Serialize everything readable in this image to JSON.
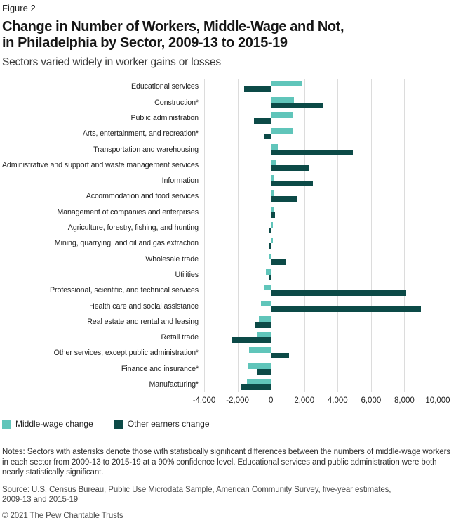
{
  "figure_label": "Figure 2",
  "title_line1": "Change in Number of Workers, Middle-Wage and Not,",
  "title_line2": "in Philadelphia by Sector, 2009-13 to 2015-19",
  "subtitle": "Sectors varied widely in worker gains or losses",
  "colors": {
    "middle_wage": "#60c5ba",
    "other_earners": "#0c4a47",
    "gridline": "#dcdcdc",
    "zero_line": "#9f9f9f"
  },
  "chart_data": {
    "type": "bar",
    "orientation": "horizontal",
    "categories": [
      "Educational services",
      "Construction*",
      "Public administration",
      "Arts, entertainment, and recreation*",
      "Transportation and warehousing",
      "Administrative and support and waste management services",
      "Information",
      "Accommodation and food services",
      "Management of companies and enterprises",
      "Agriculture, forestry, fishing, and hunting",
      "Mining, quarrying, and oil and gas extraction",
      "Wholesale trade",
      "Utilities",
      "Professional, scientific, and technical services",
      "Health care and social assistance",
      "Real estate and rental and leasing",
      "Retail trade",
      "Other services, except public administration*",
      "Finance and insurance*",
      "Manufacturing*"
    ],
    "series": [
      {
        "name": "Middle-wage change",
        "color": "#60c5ba",
        "values": [
          1900,
          1400,
          1300,
          1300,
          400,
          350,
          200,
          200,
          150,
          100,
          100,
          -100,
          -300,
          -400,
          -600,
          -700,
          -800,
          -1300,
          -1400,
          -1450
        ]
      },
      {
        "name": "Other earners change",
        "color": "#0c4a47",
        "values": [
          -1600,
          3100,
          -1000,
          -400,
          4900,
          2300,
          2500,
          1600,
          250,
          -150,
          -100,
          900,
          -100,
          8100,
          9000,
          -950,
          -2300,
          1100,
          -800,
          -1800
        ]
      }
    ],
    "xlim": [
      -4000,
      10000
    ],
    "x_ticks": [
      -4000,
      -2000,
      0,
      2000,
      4000,
      6000,
      8000,
      10000
    ],
    "x_tick_labels": [
      "-4,000",
      "-2,000",
      "0",
      "2,000",
      "4,000",
      "6,000",
      "8,000",
      "10,000"
    ],
    "grid": true,
    "legend_position": "bottom-left"
  },
  "legend": [
    {
      "label": "Middle-wage change",
      "color_key": "middle_wage"
    },
    {
      "label": "Other earners change",
      "color_key": "other_earners"
    }
  ],
  "notes": "Notes: Sectors with asterisks denote those with statistically significant differences between the numbers of middle-wage workers in each sector from 2009-13 to 2015-19 at a 90% confidence level. Educational services and public administration were both nearly statistically significant.",
  "source_line1": "Source: U.S. Census Bureau, Public Use Microdata Sample, American Community Survey, five-year estimates,",
  "source_line2": "2009-13 and 2015-19",
  "copyright": "© 2021 The Pew Charitable Trusts"
}
